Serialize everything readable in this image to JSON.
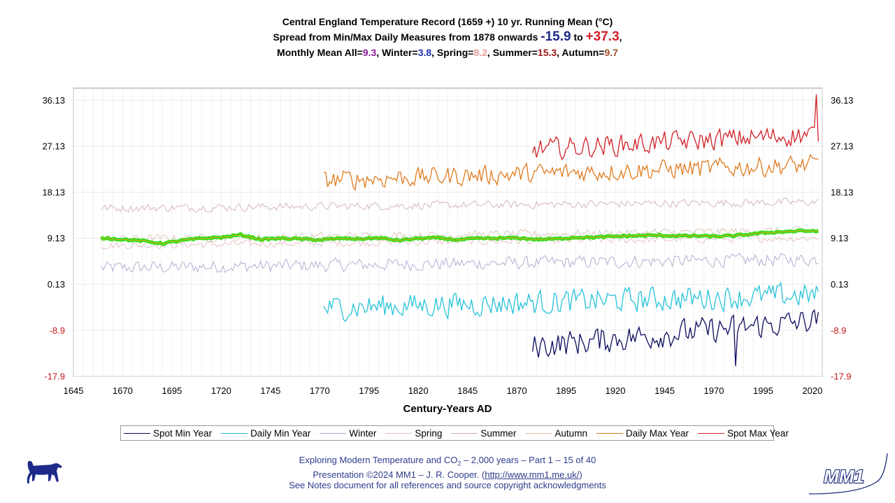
{
  "title": {
    "line1": "Central England Temperature Record (1659 +) 10 yr. Running Mean (°C)",
    "line2_prefix": "Spread from Min/Max Daily Measures from 1878 onwards ",
    "line2_min": "-15.9",
    "line2_to": " to ",
    "line2_max": "+37.3",
    "line2_suffix": ",",
    "line3": [
      {
        "text": "Monthly Mean All=",
        "color": "#000000"
      },
      {
        "text": "9.3",
        "color": "#8b1a9b"
      },
      {
        "text": ", Winter=",
        "color": "#000000"
      },
      {
        "text": "3.8",
        "color": "#1f2fae"
      },
      {
        "text": ", Spring=",
        "color": "#000000"
      },
      {
        "text": "8.2",
        "color": "#e8a0a0"
      },
      {
        "text": ", Summer=",
        "color": "#000000"
      },
      {
        "text": "15.3",
        "color": "#a01818"
      },
      {
        "text": ", Autumn=",
        "color": "#000000"
      },
      {
        "text": "9.7",
        "color": "#a0522d"
      }
    ]
  },
  "chart_data": {
    "type": "line",
    "xlabel": "Century-Years AD",
    "ylabel": "",
    "xlim": [
      1645,
      2025
    ],
    "ylim": [
      -17.9,
      38.5
    ],
    "x_ticks": [
      1645,
      1670,
      1695,
      1720,
      1745,
      1770,
      1795,
      1820,
      1845,
      1870,
      1895,
      1920,
      1945,
      1970,
      1995,
      2020
    ],
    "y_ticks": [
      36.13,
      27.13,
      18.13,
      9.13,
      0.13,
      -8.9,
      -17.9
    ],
    "y_tick_labels": [
      "36.13",
      "27.13",
      "18.13",
      "9.13",
      "0.13",
      "-8.9",
      "-17.9"
    ],
    "grid": true,
    "legend_position": "bottom",
    "series": [
      {
        "name": "Spot Min Year",
        "color": "#0b0b5e",
        "start": 1878,
        "end": 2023,
        "base_start": -12.0,
        "base_end": -7.0,
        "amp": 3.2,
        "min_value": -15.9
      },
      {
        "name": "Daily Min Year",
        "color": "#27c3da",
        "start": 1772,
        "end": 2023,
        "base_start": -4.5,
        "base_end": -2.0,
        "amp": 3.0
      },
      {
        "name": "Winter",
        "color": "#a9a9cf",
        "start": 1659,
        "end": 2023,
        "base_start": 3.3,
        "base_end": 5.0,
        "amp": 1.6
      },
      {
        "name": "Spring",
        "color": "#e6bcbc",
        "start": 1659,
        "end": 2023,
        "base_start": 7.7,
        "base_end": 9.2,
        "amp": 0.9
      },
      {
        "name": "Summer",
        "color": "#d2b0b0",
        "start": 1659,
        "end": 2023,
        "base_start": 15.0,
        "base_end": 16.2,
        "amp": 1.0
      },
      {
        "name": "Autumn",
        "color": "#d8c0b0",
        "start": 1659,
        "end": 2023,
        "base_start": 9.0,
        "base_end": 10.6,
        "amp": 1.0
      },
      {
        "name": "Daily Max Year",
        "color": "#e07b1f",
        "start": 1772,
        "end": 2023,
        "base_start": 20.5,
        "base_end": 23.5,
        "amp": 2.4
      },
      {
        "name": "Spot Max Year",
        "color": "#d21f26",
        "start": 1878,
        "end": 2023,
        "base_start": 26.5,
        "base_end": 29.5,
        "amp": 2.6,
        "max_value": 37.3
      }
    ],
    "running_mean": {
      "name": "10 yr. Running Mean",
      "color": "#2fe01a",
      "points": [
        [
          1659,
          9.2
        ],
        [
          1670,
          8.9
        ],
        [
          1680,
          8.6
        ],
        [
          1690,
          8.1
        ],
        [
          1700,
          8.7
        ],
        [
          1710,
          9.1
        ],
        [
          1720,
          9.3
        ],
        [
          1730,
          9.8
        ],
        [
          1740,
          8.9
        ],
        [
          1750,
          9.1
        ],
        [
          1760,
          9.0
        ],
        [
          1770,
          8.8
        ],
        [
          1780,
          9.1
        ],
        [
          1790,
          9.0
        ],
        [
          1800,
          9.2
        ],
        [
          1810,
          8.7
        ],
        [
          1820,
          9.1
        ],
        [
          1830,
          9.2
        ],
        [
          1840,
          8.8
        ],
        [
          1850,
          9.1
        ],
        [
          1860,
          9.1
        ],
        [
          1870,
          9.2
        ],
        [
          1880,
          8.9
        ],
        [
          1890,
          9.0
        ],
        [
          1900,
          9.3
        ],
        [
          1910,
          9.3
        ],
        [
          1920,
          9.5
        ],
        [
          1930,
          9.6
        ],
        [
          1940,
          9.7
        ],
        [
          1950,
          9.6
        ],
        [
          1960,
          9.6
        ],
        [
          1970,
          9.5
        ],
        [
          1980,
          9.6
        ],
        [
          1990,
          10.0
        ],
        [
          2000,
          10.3
        ],
        [
          2010,
          10.5
        ],
        [
          2023,
          10.6
        ]
      ]
    }
  },
  "footer": {
    "line1_pre": "Exploring Modern Temperature and CO",
    "line1_sub": "2",
    "line1_post": " – 2,000 years – Part 1 – 15 of 40",
    "line2_pre": "Presentation ©2024 MM1 – J. R. Cooper. (",
    "line2_link": "http://www.mm1.me.uk/",
    "line2_post": ")",
    "line3": "See Notes document for all references and source copyright acknowledgments"
  },
  "logo": {
    "text": "MM1",
    "color": "#1e2a7a"
  },
  "colors": {
    "axis_left_positive": "#000000",
    "axis_negative": "#c01818",
    "grid": "#e6e6e6",
    "frame": "#9a9a9a"
  }
}
